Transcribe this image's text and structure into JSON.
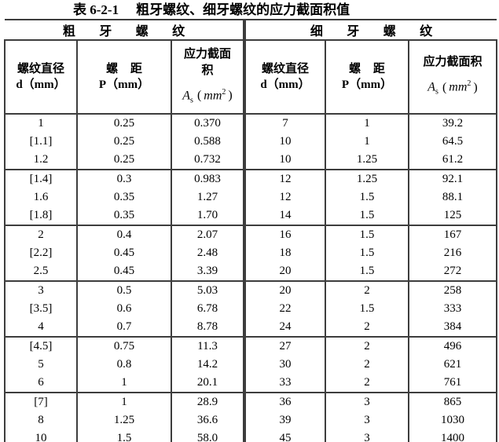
{
  "page": {
    "title_label": "表 6-2-1",
    "title_text": "粗牙螺纹、细牙螺纹的应力截面积值"
  },
  "table": {
    "coarse": {
      "group_label": "粗牙螺纹",
      "headers": {
        "d_line1": "螺纹直径",
        "d_line2": "d（mm）",
        "p_line1": "螺距",
        "p_line2": "P（mm）",
        "as_line1": "应力截面",
        "as_line2": "积"
      }
    },
    "fine": {
      "group_label": "细牙螺纹",
      "headers": {
        "d_line1": "螺纹直径",
        "d_line2": "d（mm）",
        "p_line1": "螺距",
        "p_line2": "P（mm）",
        "as_line1": "应力截面积"
      }
    },
    "as_formula": {
      "symbol": "A",
      "subscript": "s",
      "open_paren": "(",
      "unit": "mm",
      "exponent": "2",
      "close_paren": ")"
    },
    "row_groups": [
      [
        [
          "1",
          "0.25",
          "0.370",
          "7",
          "1",
          "39.2"
        ],
        [
          "[1.1]",
          "0.25",
          "0.588",
          "10",
          "1",
          "64.5"
        ],
        [
          "1.2",
          "0.25",
          "0.732",
          "10",
          "1.25",
          "61.2"
        ]
      ],
      [
        [
          "[1.4]",
          "0.3",
          "0.983",
          "12",
          "1.25",
          "92.1"
        ],
        [
          "1.6",
          "0.35",
          "1.27",
          "12",
          "1.5",
          "88.1"
        ],
        [
          "[1.8]",
          "0.35",
          "1.70",
          "14",
          "1.5",
          "125"
        ]
      ],
      [
        [
          "2",
          "0.4",
          "2.07",
          "16",
          "1.5",
          "167"
        ],
        [
          "[2.2]",
          "0.45",
          "2.48",
          "18",
          "1.5",
          "216"
        ],
        [
          "2.5",
          "0.45",
          "3.39",
          "20",
          "1.5",
          "272"
        ]
      ],
      [
        [
          "3",
          "0.5",
          "5.03",
          "20",
          "2",
          "258"
        ],
        [
          "[3.5]",
          "0.6",
          "6.78",
          "22",
          "1.5",
          "333"
        ],
        [
          "4",
          "0.7",
          "8.78",
          "24",
          "2",
          "384"
        ]
      ],
      [
        [
          "[4.5]",
          "0.75",
          "11.3",
          "27",
          "2",
          "496"
        ],
        [
          "5",
          "0.8",
          "14.2",
          "30",
          "2",
          "621"
        ],
        [
          "6",
          "1",
          "20.1",
          "33",
          "2",
          "761"
        ]
      ],
      [
        [
          "[7]",
          "1",
          "28.9",
          "36",
          "3",
          "865"
        ],
        [
          "8",
          "1.25",
          "36.6",
          "39",
          "3",
          "1030"
        ],
        [
          "10",
          "1.5",
          "58.0",
          "45",
          "3",
          "1400"
        ]
      ]
    ],
    "column_cell_names": [
      "coarse-diameter-cell",
      "coarse-pitch-cell",
      "coarse-stress-area-cell",
      "fine-diameter-cell",
      "fine-pitch-cell",
      "fine-stress-area-cell"
    ]
  }
}
